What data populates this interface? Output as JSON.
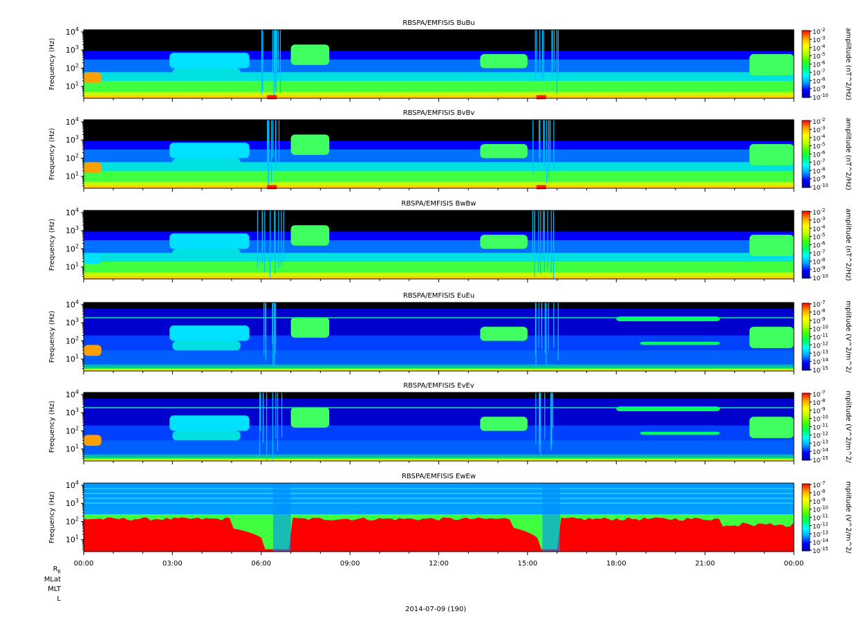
{
  "chart_data": {
    "type": "heatmap",
    "panels": [
      {
        "title": "RBSPA/EMFISIS  BuBu",
        "ylabel": "Frequency (Hz)",
        "yscale": "log",
        "yticks": [
          10,
          100,
          1000,
          10000
        ],
        "zlabel": "amplitude (nT^2/Hz)",
        "zscale": "log",
        "zrange": [
          1e-10,
          0.01
        ],
        "zexp": [
          -2,
          -3,
          -4,
          -5,
          -6,
          -7,
          -8,
          -9,
          -10
        ],
        "zticks": [
          "10^-2",
          "10^-3",
          "10^-4",
          "10^-5",
          "10^-6",
          "10^-7",
          "10^-8",
          "10^-9",
          "10^-10"
        ]
      },
      {
        "title": "RBSPA/EMFISIS  BvBv",
        "ylabel": "Frequency (Hz)",
        "yscale": "log",
        "yticks": [
          10,
          100,
          1000,
          10000
        ],
        "zlabel": "amplitude (nT^2/Hz)",
        "zscale": "log",
        "zrange": [
          1e-10,
          0.01
        ],
        "zexp": [
          -2,
          -3,
          -4,
          -5,
          -6,
          -7,
          -8,
          -9,
          -10
        ],
        "zticks": [
          "10^-2",
          "10^-3",
          "10^-4",
          "10^-5",
          "10^-6",
          "10^-7",
          "10^-8",
          "10^-9",
          "10^-10"
        ]
      },
      {
        "title": "RBSPA/EMFISIS  BwBw",
        "ylabel": "Frequency (Hz)",
        "yscale": "log",
        "yticks": [
          10,
          100,
          1000,
          10000
        ],
        "zlabel": "amplitude (nT^2/Hz)",
        "zscale": "log",
        "zrange": [
          1e-10,
          0.01
        ],
        "zexp": [
          -2,
          -3,
          -4,
          -5,
          -6,
          -7,
          -8,
          -9,
          -10
        ],
        "zticks": [
          "10^-2",
          "10^-3",
          "10^-4",
          "10^-5",
          "10^-6",
          "10^-7",
          "10^-8",
          "10^-9",
          "10^-10"
        ]
      },
      {
        "title": "RBSPA/EMFISIS  EuEu",
        "ylabel": "Frequency (Hz)",
        "yscale": "log",
        "yticks": [
          10,
          100,
          1000,
          10000
        ],
        "zlabel": "mplitude (V^2/m^2/",
        "zscale": "log",
        "zrange": [
          1e-15,
          1e-07
        ],
        "zexp": [
          -7,
          -8,
          -9,
          -10,
          -11,
          -12,
          -13,
          -14,
          -15
        ],
        "zticks": [
          "10^-7",
          "10^-8",
          "10^-9",
          "10^-10",
          "10^-11",
          "10^-12",
          "10^-13",
          "10^-14",
          "10^-15"
        ]
      },
      {
        "title": "RBSPA/EMFISIS  EvEv",
        "ylabel": "Frequency (Hz)",
        "yscale": "log",
        "yticks": [
          10,
          100,
          1000,
          10000
        ],
        "zlabel": "mplitude (V^2/m^2/",
        "zscale": "log",
        "zrange": [
          1e-15,
          1e-07
        ],
        "zexp": [
          -7,
          -8,
          -9,
          -10,
          -11,
          -12,
          -13,
          -14,
          -15
        ],
        "zticks": [
          "10^-7",
          "10^-8",
          "10^-9",
          "10^-10",
          "10^-11",
          "10^-12",
          "10^-13",
          "10^-14",
          "10^-15"
        ]
      },
      {
        "title": "RBSPA/EMFISIS  EwEw",
        "ylabel": "Frequency (Hz)",
        "yscale": "log",
        "yticks": [
          10,
          100,
          1000,
          10000
        ],
        "zlabel": "mplitude (V^2/m^2/",
        "zscale": "log",
        "zrange": [
          1e-15,
          1e-07
        ],
        "zexp": [
          -7,
          -8,
          -9,
          -10,
          -11,
          -12,
          -13,
          -14,
          -15
        ],
        "zticks": [
          "10^-7",
          "10^-8",
          "10^-9",
          "10^-10",
          "10^-11",
          "10^-12",
          "10^-13",
          "10^-14",
          "10^-15"
        ]
      }
    ],
    "xlabels": [
      "00:00",
      "03:00",
      "06:00",
      "09:00",
      "12:00",
      "15:00",
      "18:00",
      "21:00",
      "00:00"
    ],
    "date_label": "2014-07-09 (190)",
    "ephemeris_labels": [
      "R",
      "MLat",
      "MLT",
      "L"
    ],
    "ephemeris_subscript": "E",
    "colormap": [
      "#0000aa",
      "#0000ff",
      "#00a0ff",
      "#00ffff",
      "#00ff60",
      "#40ff00",
      "#c0ff00",
      "#ffff00",
      "#ffa000",
      "#ff0000"
    ]
  }
}
